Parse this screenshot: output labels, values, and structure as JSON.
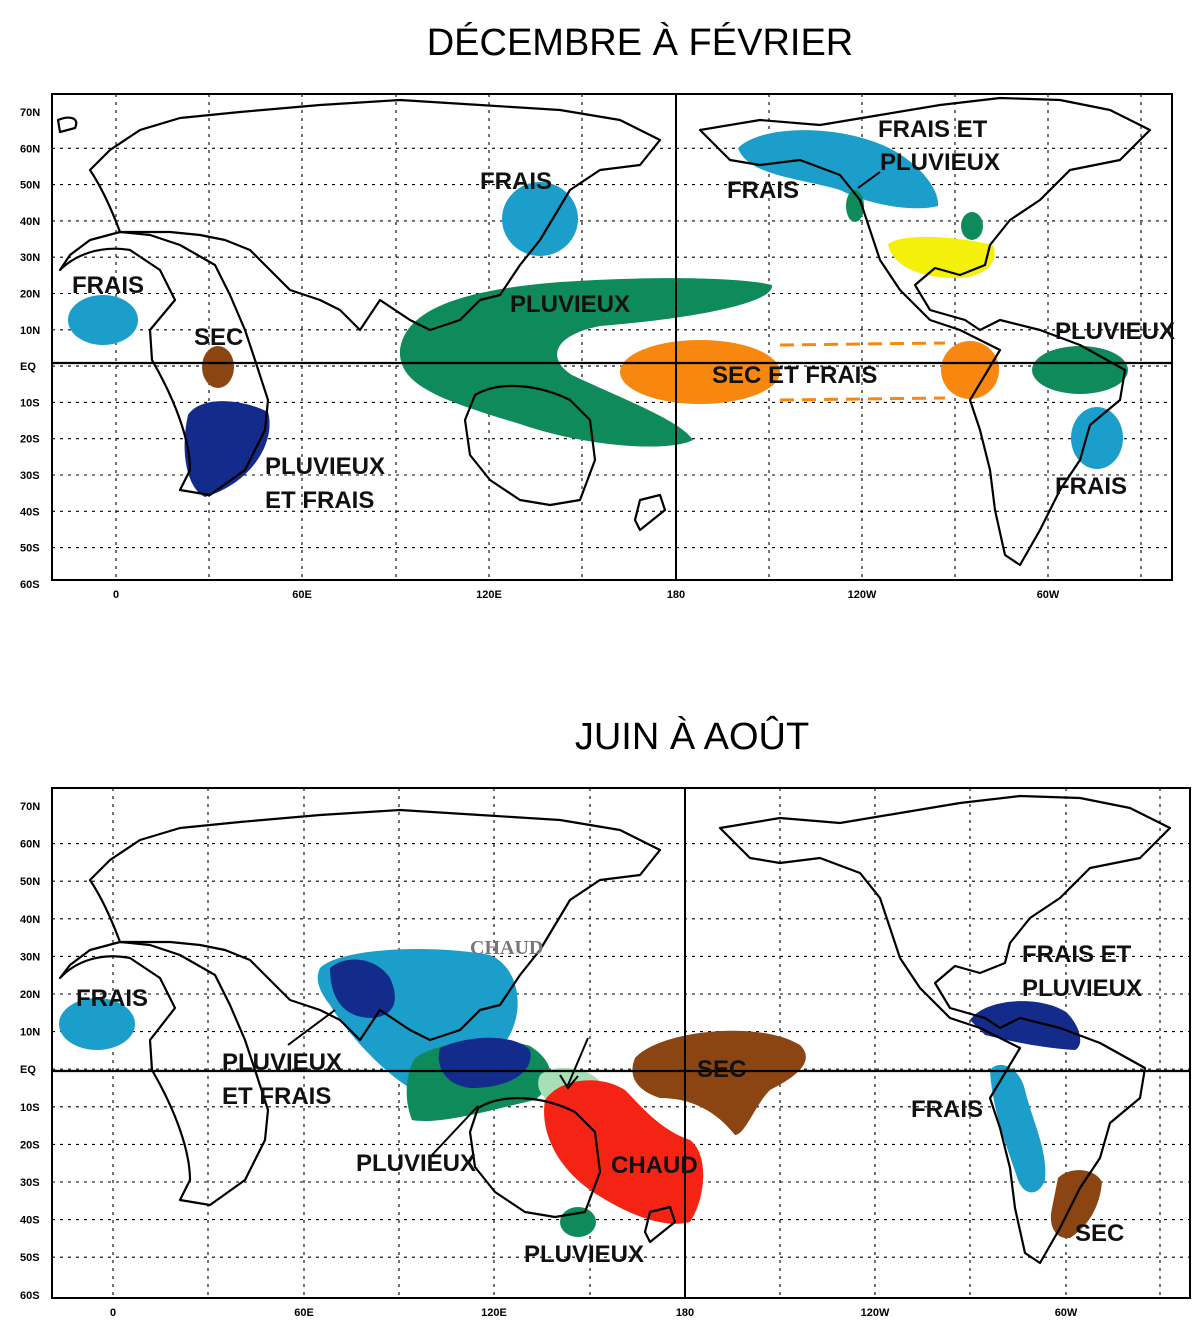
{
  "maps": [
    {
      "title": "DÉCEMBRE À FÉVRIER",
      "lat_ticks": [
        "70N",
        "60N",
        "50N",
        "40N",
        "30N",
        "20N",
        "10N",
        "EQ",
        "10S",
        "20S",
        "30S",
        "40S",
        "50S",
        "60S"
      ],
      "lon_ticks": [
        "0",
        "60E",
        "120E",
        "180",
        "120W",
        "60W"
      ],
      "labels": {
        "frais_japan": "FRAIS",
        "frais_alaska": "FRAIS",
        "frais_canada_1": "FRAIS ET",
        "frais_canada_2": "PLUVIEUX",
        "frais_africa": "FRAIS",
        "sec_africa": "SEC",
        "pluvieux_pacific": "PLUVIEUX",
        "sec_frais_pacific": "SEC ET FRAIS",
        "pluvieux_sa": "PLUVIEUX",
        "pluvieux_frais_1": "PLUVIEUX",
        "pluvieux_frais_2": "ET FRAIS",
        "frais_brazil": "FRAIS"
      }
    },
    {
      "title": "JUIN À AOÛT",
      "lat_ticks": [
        "70N",
        "60N",
        "50N",
        "40N",
        "30N",
        "20N",
        "10N",
        "EQ",
        "10S",
        "20S",
        "30S",
        "40S",
        "50S",
        "60S"
      ],
      "lon_ticks": [
        "0",
        "60E",
        "120E",
        "180",
        "120W",
        "60W"
      ],
      "labels": {
        "frais_africa": "FRAIS",
        "chaud_china": "CHAUD",
        "pluvieux_frais_1": "PLUVIEUX",
        "pluvieux_frais_2": "ET FRAIS",
        "pluvieux_indonesia": "PLUVIEUX",
        "sec_pacific": "SEC",
        "chaud_australia": "CHAUD",
        "pluvieux_nz": "PLUVIEUX",
        "frais_pluvieux_1": "FRAIS ET",
        "frais_pluvieux_2": "PLUVIEUX",
        "frais_andes": "FRAIS",
        "sec_argentina": "SEC"
      }
    }
  ],
  "colors": {
    "cool": "#1b9ec9",
    "wet": "#0e8a5b",
    "dry_orange": "#f7870f",
    "dry_brown": "#8b4513",
    "wet_cool": "#132c8c",
    "warm_yellow": "#f5f00a",
    "warm_red": "#f42314",
    "light_green": "#a7dfb7"
  }
}
